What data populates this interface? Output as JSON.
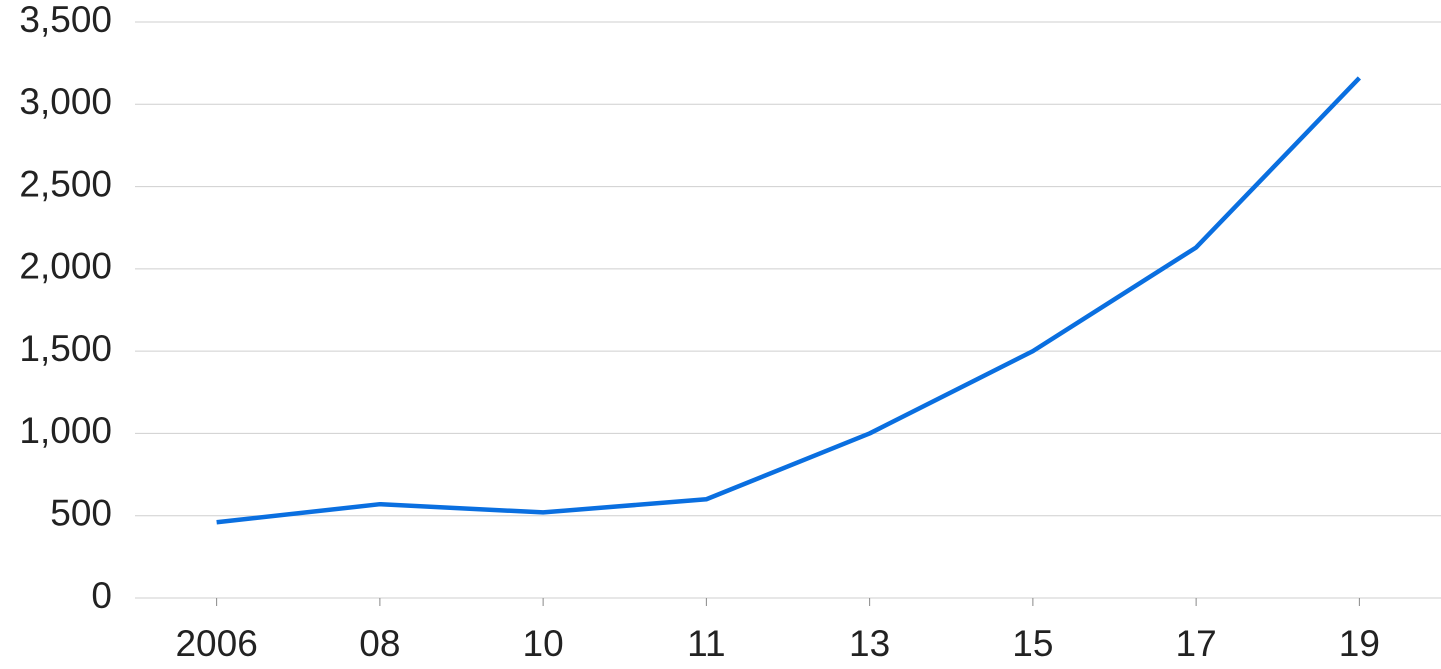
{
  "chart_data": {
    "type": "line",
    "categories": [
      "2006",
      "08",
      "10",
      "11",
      "13",
      "15",
      "17",
      "19"
    ],
    "series": [
      {
        "color": "#0a6fe0",
        "values": [
          460,
          570,
          520,
          600,
          1000,
          1500,
          2130,
          3160
        ]
      }
    ],
    "ylim": [
      0,
      3500
    ],
    "yticks": [
      0,
      500,
      {
        "value": 1000,
        "label": "1,000"
      },
      {
        "value": 1500,
        "label": "1,500"
      },
      {
        "value": 2000,
        "label": "2,000"
      },
      {
        "value": 2500,
        "label": "2,500"
      },
      {
        "value": 3000,
        "label": "3,000"
      },
      {
        "value": 3500,
        "label": "3,500"
      }
    ],
    "grid": true
  }
}
